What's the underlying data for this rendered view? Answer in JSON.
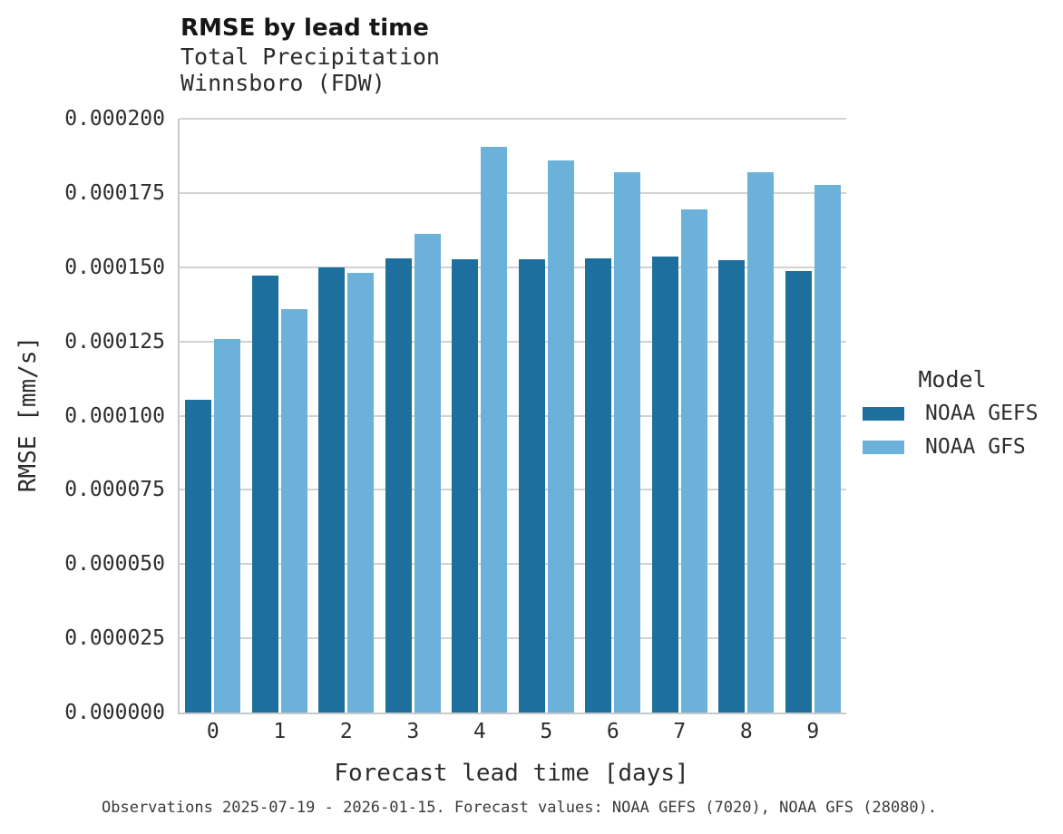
{
  "title": "RMSE by lead time",
  "subtitle_line1": "Total Precipitation",
  "subtitle_line2": "Winnsboro (FDW)",
  "caption": "Observations 2025-07-19 - 2026-01-15. Forecast values: NOAA GEFS (7020), NOAA GFS (28080).",
  "legend": {
    "title": "Model",
    "entries": [
      {
        "label": "NOAA GEFS",
        "color": "#1d6f9d"
      },
      {
        "label": "NOAA GFS",
        "color": "#6bb1d9"
      }
    ]
  },
  "chart_data": {
    "type": "bar",
    "title": "RMSE by lead time",
    "subtitle": [
      "Total Precipitation",
      "Winnsboro (FDW)"
    ],
    "xlabel": "Forecast lead time [days]",
    "ylabel": "RMSE [mm/s]",
    "categories": [
      "0",
      "1",
      "2",
      "3",
      "4",
      "5",
      "6",
      "7",
      "8",
      "9"
    ],
    "series": [
      {
        "name": "NOAA GEFS",
        "color": "#1d6f9d",
        "values": [
          0.0001052,
          0.0001472,
          0.0001498,
          0.000153,
          0.0001528,
          0.0001527,
          0.0001531,
          0.0001535,
          0.0001523,
          0.0001486
        ]
      },
      {
        "name": "NOAA GFS",
        "color": "#6bb1d9",
        "values": [
          0.0001259,
          0.0001359,
          0.000148,
          0.0001613,
          0.0001904,
          0.0001861,
          0.0001819,
          0.0001694,
          0.000182,
          0.0001776
        ]
      }
    ],
    "ylim": [
      0,
      0.0002
    ],
    "yticks": [
      {
        "value": 0,
        "label": "0.000000"
      },
      {
        "value": 2.5e-05,
        "label": "0.000025"
      },
      {
        "value": 5e-05,
        "label": "0.000050"
      },
      {
        "value": 7.5e-05,
        "label": "0.000075"
      },
      {
        "value": 0.0001,
        "label": "0.000100"
      },
      {
        "value": 0.000125,
        "label": "0.000125"
      },
      {
        "value": 0.00015,
        "label": "0.000150"
      },
      {
        "value": 0.000175,
        "label": "0.000175"
      },
      {
        "value": 0.0002,
        "label": "0.000200"
      }
    ],
    "grid": "horizontal",
    "legend_position": "right",
    "legend_title": "Model",
    "gridline_color": "#d2d2d2",
    "background_color": "#ffffff"
  }
}
